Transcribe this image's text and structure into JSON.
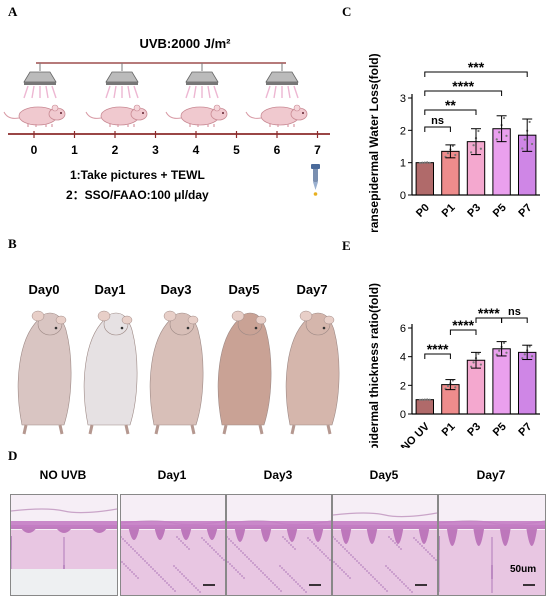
{
  "panels": {
    "a": "A",
    "b": "B",
    "c": "C",
    "d": "D",
    "e": "E"
  },
  "timeline": {
    "uvb_text": "UVB:2000 J/m²",
    "days": [
      "0",
      "1",
      "2",
      "3",
      "4",
      "5",
      "6",
      "7"
    ],
    "note1": "1:Take pictures + TEWL",
    "note2": "2：SSO/FAAO:100 μl/day",
    "colors": {
      "line": "#8b2b2b",
      "lamp": "#7a7a7a",
      "mouse": "#f0c9cf"
    }
  },
  "photos": {
    "labels": [
      "Day0",
      "Day1",
      "Day3",
      "Day5",
      "Day7"
    ],
    "tones": [
      "#d9c5c2",
      "#e6e1e3",
      "#d8bfb8",
      "#c9a295",
      "#d5b6ac"
    ]
  },
  "histology": {
    "labels": [
      "NO UVB",
      "Day1",
      "Day3",
      "Day5",
      "Day7"
    ],
    "scale_text": "50um"
  },
  "chart_data": [
    {
      "type": "bar",
      "ylabel": "Transepidermal Water Loss(fold)",
      "categories": [
        "P0",
        "P1",
        "P3",
        "P5",
        "P7"
      ],
      "values": [
        1.0,
        1.35,
        1.65,
        2.05,
        1.85
      ],
      "errors": [
        0.0,
        0.2,
        0.4,
        0.4,
        0.5
      ],
      "ylim": [
        0,
        3
      ],
      "yticks": [
        "0",
        "1",
        "2",
        "3"
      ],
      "colors": [
        "#b06a6a",
        "#ee8c8c",
        "#f4a8cf",
        "#eaa0ee",
        "#cf86e6"
      ],
      "significance": [
        {
          "from": 0,
          "to": 1,
          "label": "ns"
        },
        {
          "from": 0,
          "to": 2,
          "label": "**"
        },
        {
          "from": 0,
          "to": 3,
          "label": "****"
        },
        {
          "from": 0,
          "to": 4,
          "label": "***"
        }
      ]
    },
    {
      "type": "bar",
      "ylabel": "Epidermal thickness ratio(fold)",
      "categories": [
        "NO UV",
        "P1",
        "P3",
        "P5",
        "P7"
      ],
      "values": [
        1.0,
        2.05,
        3.75,
        4.55,
        4.3
      ],
      "errors": [
        0.0,
        0.35,
        0.55,
        0.5,
        0.5
      ],
      "ylim": [
        0,
        6
      ],
      "yticks": [
        "0",
        "2",
        "4",
        "6"
      ],
      "colors": [
        "#b06a6a",
        "#ee8c8c",
        "#f4a8cf",
        "#eaa0ee",
        "#cf86e6"
      ],
      "significance": [
        {
          "from": 0,
          "to": 1,
          "label": "****"
        },
        {
          "from": 1,
          "to": 2,
          "label": "****"
        },
        {
          "from": 2,
          "to": 3,
          "label": "****"
        },
        {
          "from": 3,
          "to": 4,
          "label": "ns"
        }
      ]
    }
  ]
}
